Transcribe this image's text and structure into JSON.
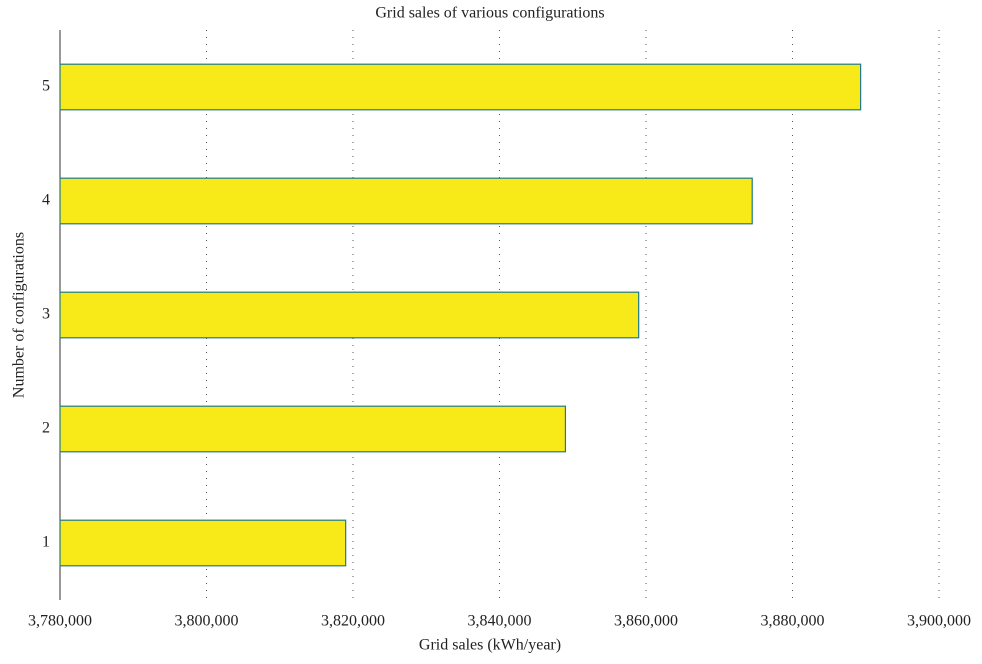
{
  "chart_data": {
    "type": "bar",
    "orientation": "horizontal",
    "title": "Grid sales of various configurations",
    "x_label": "Grid sales (kWh/year)",
    "y_label": "Number of configurations",
    "categories": [
      "1",
      "2",
      "3",
      "4",
      "5"
    ],
    "values": [
      3819000,
      3849000,
      3859000,
      3874500,
      3889300
    ],
    "color": "#f8ea18",
    "edge_color": "#1f7a8c",
    "xlim": [
      3780000,
      3900000
    ],
    "xticks": [
      {
        "value": 3780000,
        "label": "3,780,000"
      },
      {
        "value": 3800000,
        "label": "3,800,000"
      },
      {
        "value": 3820000,
        "label": "3,820,000"
      },
      {
        "value": 3840000,
        "label": "3,840,000"
      },
      {
        "value": 3860000,
        "label": "3,860,000"
      },
      {
        "value": 3880000,
        "label": "3,880,000"
      },
      {
        "value": 3900000,
        "label": "3,900,000"
      }
    ],
    "grid": true
  }
}
